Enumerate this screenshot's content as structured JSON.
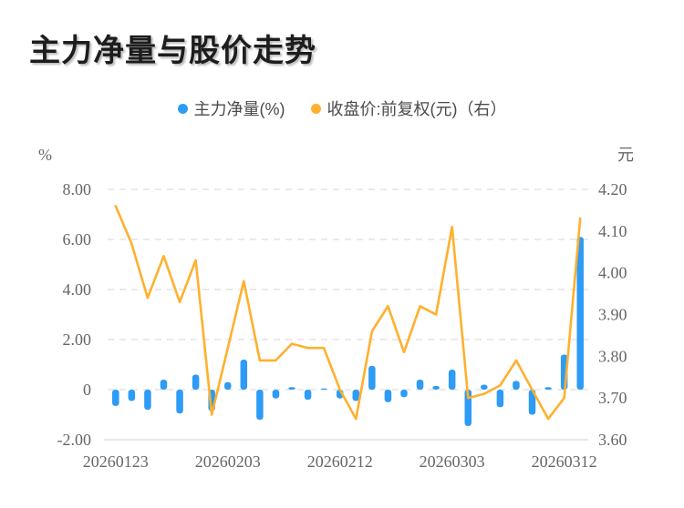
{
  "title": "主力净量与股价走势",
  "legend": [
    {
      "label": "主力净量(%)",
      "color": "#2E9BF5"
    },
    {
      "label": "收盘价:前复权(元)（右）",
      "color": "#FFB02E"
    }
  ],
  "chart_data": {
    "type": "bar+line dual-axis",
    "n_points": 30,
    "grid": {
      "style": "dashed",
      "color": "#e3e3e3",
      "axis_line_color": "#e0e0e0"
    },
    "left_axis": {
      "unit": "%",
      "min": -2,
      "max": 8,
      "ticks": [
        "8.00",
        "6.00",
        "4.00",
        "2.00",
        "0",
        "-2.00"
      ]
    },
    "right_axis": {
      "unit": "元",
      "min": 3.6,
      "max": 4.2,
      "ticks": [
        "4.20",
        "4.10",
        "4.00",
        "3.90",
        "3.80",
        "3.70",
        "3.60"
      ]
    },
    "x_axis": {
      "labeled_ticks": [
        {
          "index": 0,
          "label": "20260123"
        },
        {
          "index": 7,
          "label": "20260203"
        },
        {
          "index": 14,
          "label": "20260212"
        },
        {
          "index": 21,
          "label": "20260303"
        },
        {
          "index": 28,
          "label": "20260312"
        }
      ]
    },
    "series": [
      {
        "name": "主力净量(%)",
        "type": "bar",
        "y_axis": "left",
        "color": "#2E9BF5",
        "values": [
          -0.65,
          -0.45,
          -0.8,
          0.4,
          -0.95,
          0.6,
          -0.85,
          0.3,
          1.2,
          -1.2,
          -0.35,
          0.1,
          -0.4,
          0.05,
          -0.35,
          -0.45,
          0.95,
          -0.5,
          -0.3,
          0.4,
          0.15,
          0.8,
          -1.45,
          0.2,
          -0.7,
          0.35,
          -1.0,
          0.1,
          1.4,
          6.1
        ]
      },
      {
        "name": "收盘价:前复权(元)（右）",
        "type": "line",
        "y_axis": "right",
        "color": "#FFB02E",
        "values": [
          4.16,
          4.07,
          3.94,
          4.04,
          3.93,
          4.03,
          3.66,
          3.82,
          3.98,
          3.79,
          3.79,
          3.83,
          3.82,
          3.82,
          3.72,
          3.65,
          3.86,
          3.92,
          3.81,
          3.92,
          3.9,
          4.11,
          3.7,
          3.71,
          3.73,
          3.79,
          3.72,
          3.65,
          3.7,
          4.13
        ]
      }
    ]
  }
}
